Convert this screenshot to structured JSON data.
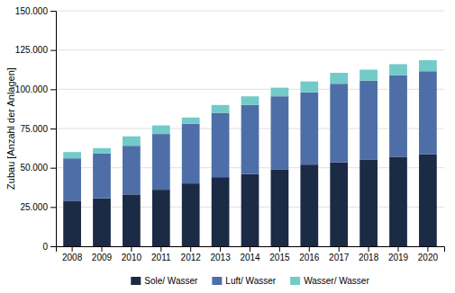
{
  "chart_data": {
    "type": "bar",
    "stacked": true,
    "ylabel": "Zubau [Anzahl der Anlagen]",
    "categories": [
      "2008",
      "2009",
      "2010",
      "2011",
      "2012",
      "2013",
      "2014",
      "2015",
      "2016",
      "2017",
      "2018",
      "2019",
      "2020"
    ],
    "series": [
      {
        "name": "Sole/ Wasser",
        "color": "#1b2a45",
        "values": [
          29000,
          30500,
          33000,
          36000,
          40000,
          44000,
          46000,
          49000,
          52000,
          53500,
          55000,
          57000,
          58500
        ]
      },
      {
        "name": "Luft/ Wasser",
        "color": "#4e6ea8",
        "values": [
          27000,
          28500,
          31000,
          35500,
          38000,
          41000,
          44000,
          46500,
          46000,
          50000,
          50500,
          52000,
          53000
        ]
      },
      {
        "name": "Wasser/ Wasser",
        "color": "#72cac9",
        "values": [
          4000,
          3500,
          6000,
          5500,
          4000,
          5000,
          5500,
          5500,
          7000,
          7000,
          7000,
          7000,
          7000
        ]
      }
    ],
    "ylim": [
      0,
      150000
    ],
    "yticks": [
      0,
      {
        "value": 25000,
        "label": "25.000"
      },
      {
        "value": 50000,
        "label": "50.000"
      },
      {
        "value": 75000,
        "label": "75.000"
      },
      {
        "value": 100000,
        "label": "100.000"
      },
      {
        "value": 125000,
        "label": "125.000"
      },
      {
        "value": 150000,
        "label": "150.000"
      }
    ],
    "grid": true,
    "legend": "bottom"
  }
}
